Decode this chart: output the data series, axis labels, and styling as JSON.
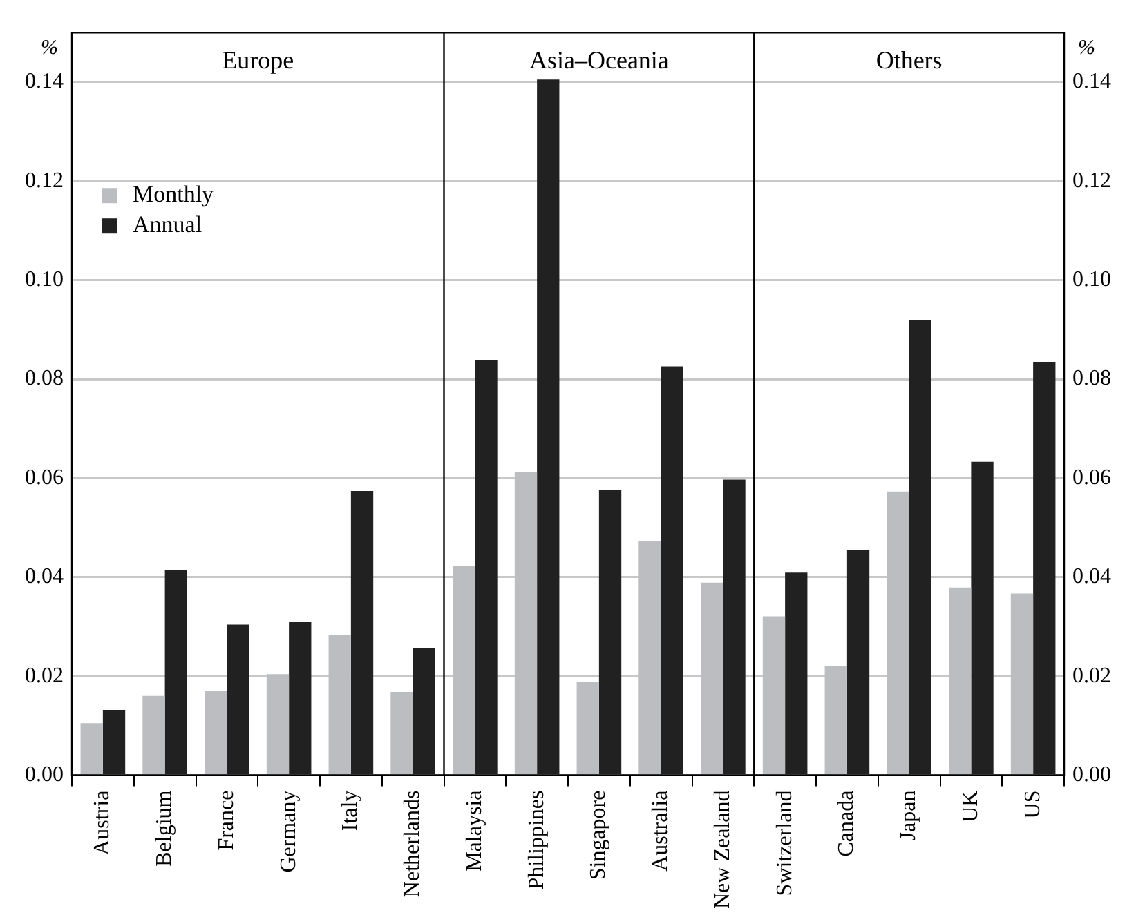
{
  "chart_data": {
    "type": "bar",
    "ylabel": "%",
    "y2label": "%",
    "categories": [
      "Austria",
      "Belgium",
      "France",
      "Germany",
      "Italy",
      "Netherlands",
      "Malaysia",
      "Philippines",
      "Singapore",
      "Australia",
      "New Zealand",
      "Switzerland",
      "Canada",
      "Japan",
      "UK",
      "US"
    ],
    "series": [
      {
        "name": "Monthly",
        "color": "#bcbdc1",
        "values": [
          0.0105,
          0.016,
          0.0171,
          0.0204,
          0.0283,
          0.0168,
          0.0422,
          0.0612,
          0.0189,
          0.0473,
          0.0389,
          0.0321,
          0.0221,
          0.0573,
          0.0379,
          0.0367
        ]
      },
      {
        "name": "Annual",
        "color": "#212121",
        "values": [
          0.0132,
          0.0415,
          0.0304,
          0.031,
          0.0574,
          0.0256,
          0.0838,
          0.1405,
          0.0576,
          0.0826,
          0.0597,
          0.0409,
          0.0455,
          0.092,
          0.0633,
          0.0835
        ]
      }
    ],
    "ylim": [
      0,
      0.15
    ],
    "yticks": [
      {
        "value": 0,
        "label": "0.00"
      },
      {
        "value": 0.02,
        "label": "0.02"
      },
      {
        "value": 0.04,
        "label": "0.04"
      },
      {
        "value": 0.06,
        "label": "0.06"
      },
      {
        "value": 0.08,
        "label": "0.08"
      },
      {
        "value": 0.1,
        "label": "0.10"
      },
      {
        "value": 0.12,
        "label": "0.12"
      },
      {
        "value": 0.14,
        "label": "0.14"
      }
    ],
    "y2lim": [
      0,
      0.15
    ],
    "y2ticks": [
      {
        "value": 0,
        "label": "0.00"
      },
      {
        "value": 0.02,
        "label": "0.02"
      },
      {
        "value": 0.04,
        "label": "0.04"
      },
      {
        "value": 0.06,
        "label": "0.06"
      },
      {
        "value": 0.08,
        "label": "0.08"
      },
      {
        "value": 0.1,
        "label": "0.10"
      },
      {
        "value": 0.12,
        "label": "0.12"
      },
      {
        "value": 0.14,
        "label": "0.14"
      }
    ],
    "annotations": [
      "Europe",
      "Asia–Oceania",
      "Others"
    ],
    "grid": "y",
    "legend": "top left"
  }
}
